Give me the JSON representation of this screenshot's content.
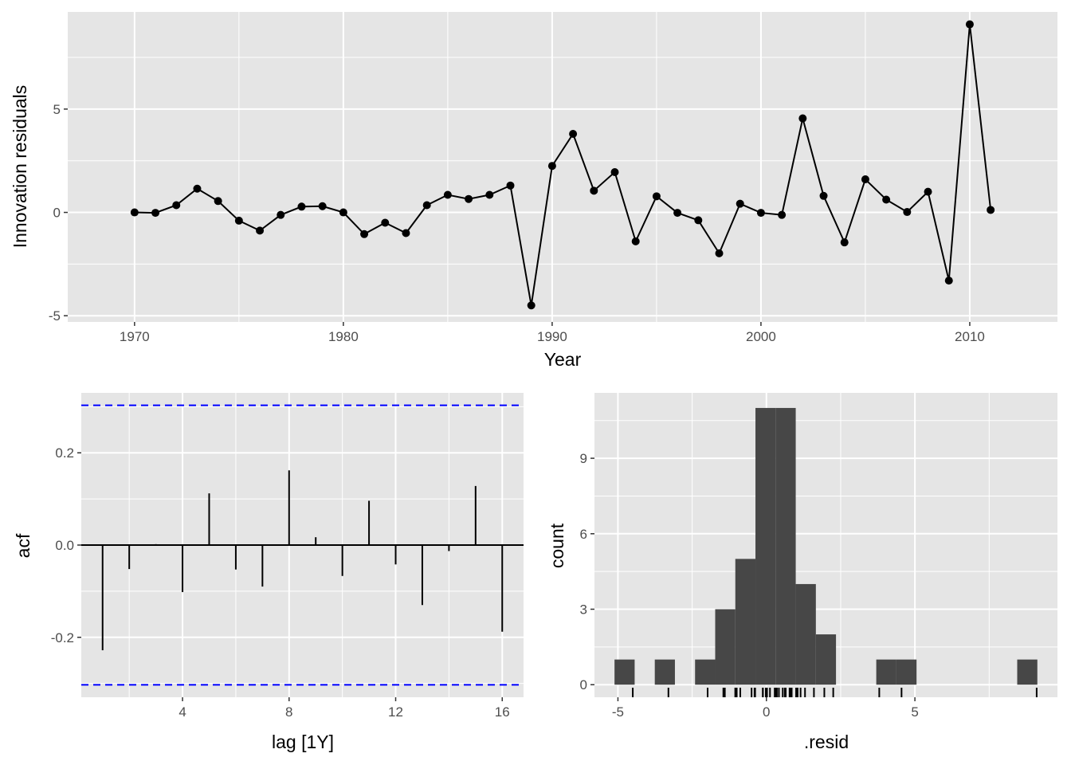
{
  "colors": {
    "panel_bg": "#e5e5e5",
    "grid": "#ffffff",
    "line": "#000000",
    "bar_fill": "#474747",
    "ci_line": "#0000ff",
    "text": "#4d4d4d"
  },
  "chart_data": [
    {
      "type": "line",
      "xlabel": "Year",
      "ylabel": "Innovation residuals",
      "xlim": [
        1966.8,
        2014.2
      ],
      "ylim": [
        -5.3,
        9.7
      ],
      "x_ticks": [
        "1970",
        "1980",
        "1990",
        "2000",
        "2010"
      ],
      "y_ticks": [
        "-5",
        "0",
        "5"
      ],
      "grid": true,
      "points": true,
      "x": [
        1970,
        1971,
        1972,
        1973,
        1974,
        1975,
        1976,
        1977,
        1978,
        1979,
        1980,
        1981,
        1982,
        1983,
        1984,
        1985,
        1986,
        1987,
        1988,
        1989,
        1990,
        1991,
        1992,
        1993,
        1994,
        1995,
        1996,
        1997,
        1998,
        1999,
        2000,
        2001,
        2002,
        2003,
        2004,
        2005,
        2006,
        2007,
        2008,
        2009,
        2010,
        2011
      ],
      "y": [
        0.0,
        -0.02,
        0.35,
        1.15,
        0.55,
        -0.4,
        -0.88,
        -0.12,
        0.28,
        0.3,
        0.0,
        -1.05,
        -0.5,
        -1.0,
        0.35,
        0.85,
        0.65,
        0.85,
        1.3,
        -4.5,
        2.25,
        3.8,
        1.05,
        1.95,
        -1.4,
        0.78,
        -0.02,
        -0.38,
        -1.98,
        0.42,
        -0.02,
        -0.12,
        4.55,
        0.8,
        -1.45,
        1.6,
        0.62,
        0.02,
        1.0,
        -3.3,
        9.1,
        0.12
      ]
    },
    {
      "type": "bar",
      "xlabel": "lag [1Y]",
      "ylabel": "acf",
      "xlim": [
        0.2,
        16.8
      ],
      "ylim": [
        -0.33,
        0.33
      ],
      "x_ticks": [
        "4",
        "8",
        "12",
        "16"
      ],
      "y_ticks": [
        "-0.2",
        "0.0",
        "0.2"
      ],
      "grid": true,
      "confidence_bound": 0.303,
      "lags": [
        1,
        2,
        3,
        4,
        5,
        6,
        7,
        8,
        9,
        10,
        11,
        12,
        13,
        14,
        15,
        16
      ],
      "values": [
        -0.228,
        -0.052,
        0.002,
        -0.102,
        0.112,
        -0.053,
        -0.09,
        0.162,
        0.017,
        -0.067,
        0.096,
        -0.042,
        -0.13,
        -0.013,
        0.128,
        -0.188
      ]
    },
    {
      "type": "bar",
      "subtype": "histogram",
      "xlabel": ".resid",
      "ylabel": "count",
      "xlim": [
        -5.79,
        9.8
      ],
      "ylim": [
        -0.5,
        11.6
      ],
      "x_ticks": [
        "-5",
        "0",
        "5"
      ],
      "y_ticks": [
        "0",
        "3",
        "6",
        "9"
      ],
      "grid": true,
      "bin_width": 0.678,
      "bin_centers": [
        -4.776,
        -4.098,
        -3.42,
        -2.742,
        -2.064,
        -1.386,
        -0.708,
        -0.03,
        0.648,
        1.326,
        2.004,
        2.682,
        3.36,
        4.038,
        4.716,
        5.394,
        6.072,
        6.75,
        7.428,
        8.106,
        8.784
      ],
      "counts": [
        1,
        0,
        1,
        0,
        1,
        3,
        5,
        11,
        11,
        4,
        2,
        0,
        0,
        1,
        1,
        0,
        0,
        0,
        0,
        0,
        1
      ],
      "rug": [
        -4.5,
        -3.3,
        -1.98,
        -1.45,
        -1.4,
        -1.05,
        -1.0,
        -0.88,
        -0.5,
        -0.4,
        -0.38,
        -0.12,
        -0.12,
        -0.02,
        -0.02,
        -0.02,
        0.0,
        0.0,
        0.02,
        0.12,
        0.28,
        0.3,
        0.35,
        0.35,
        0.42,
        0.55,
        0.62,
        0.65,
        0.78,
        0.8,
        0.85,
        0.85,
        1.0,
        1.05,
        1.15,
        1.3,
        1.6,
        1.95,
        2.25,
        3.8,
        4.55,
        9.1
      ]
    }
  ]
}
